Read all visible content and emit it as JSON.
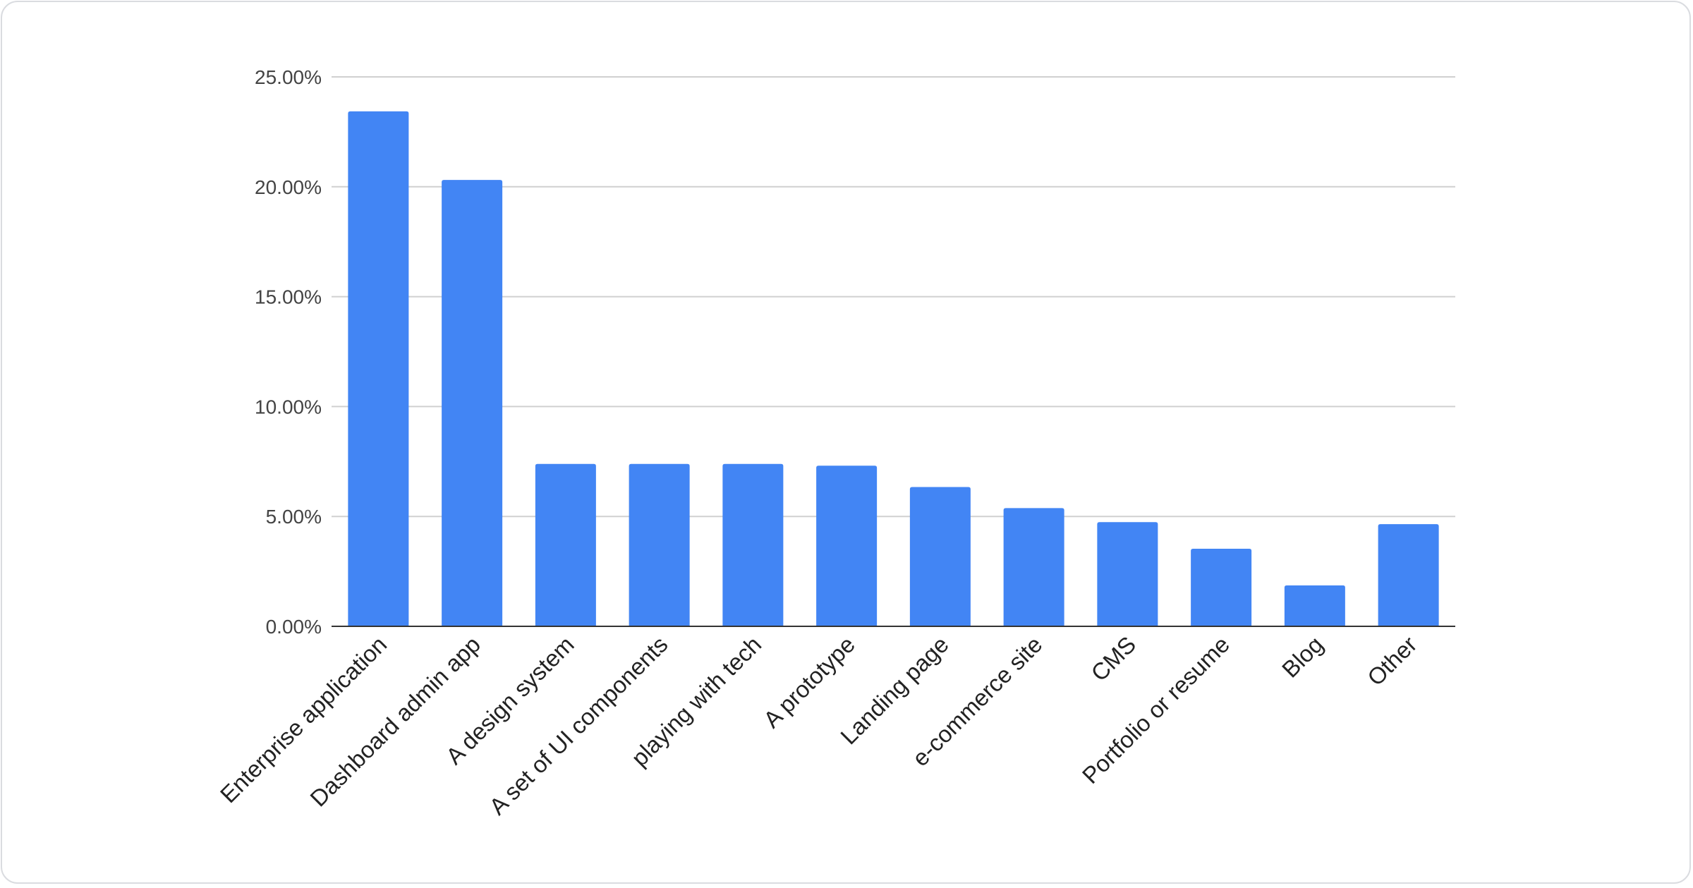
{
  "chart_data": {
    "type": "bar",
    "title": "",
    "xlabel": "",
    "ylabel": "",
    "categories": [
      "Enterprise application",
      "Dashboard admin app",
      "A design system",
      "A set of UI components",
      "playing with tech",
      "A prototype",
      "Landing page",
      "e-commerce site",
      "CMS",
      "Portfolio or resume",
      "Blog",
      "Other"
    ],
    "values": [
      23.43,
      20.31,
      7.39,
      7.39,
      7.39,
      7.31,
      6.34,
      5.38,
      4.74,
      3.53,
      1.86,
      4.65
    ],
    "ylim": [
      0,
      25
    ],
    "yticks": [
      "0.00%",
      "5.00%",
      "10.00%",
      "15.00%",
      "20.00%",
      "25.00%"
    ],
    "grid": true,
    "legend": "none",
    "bar_color": "#4285f4"
  }
}
